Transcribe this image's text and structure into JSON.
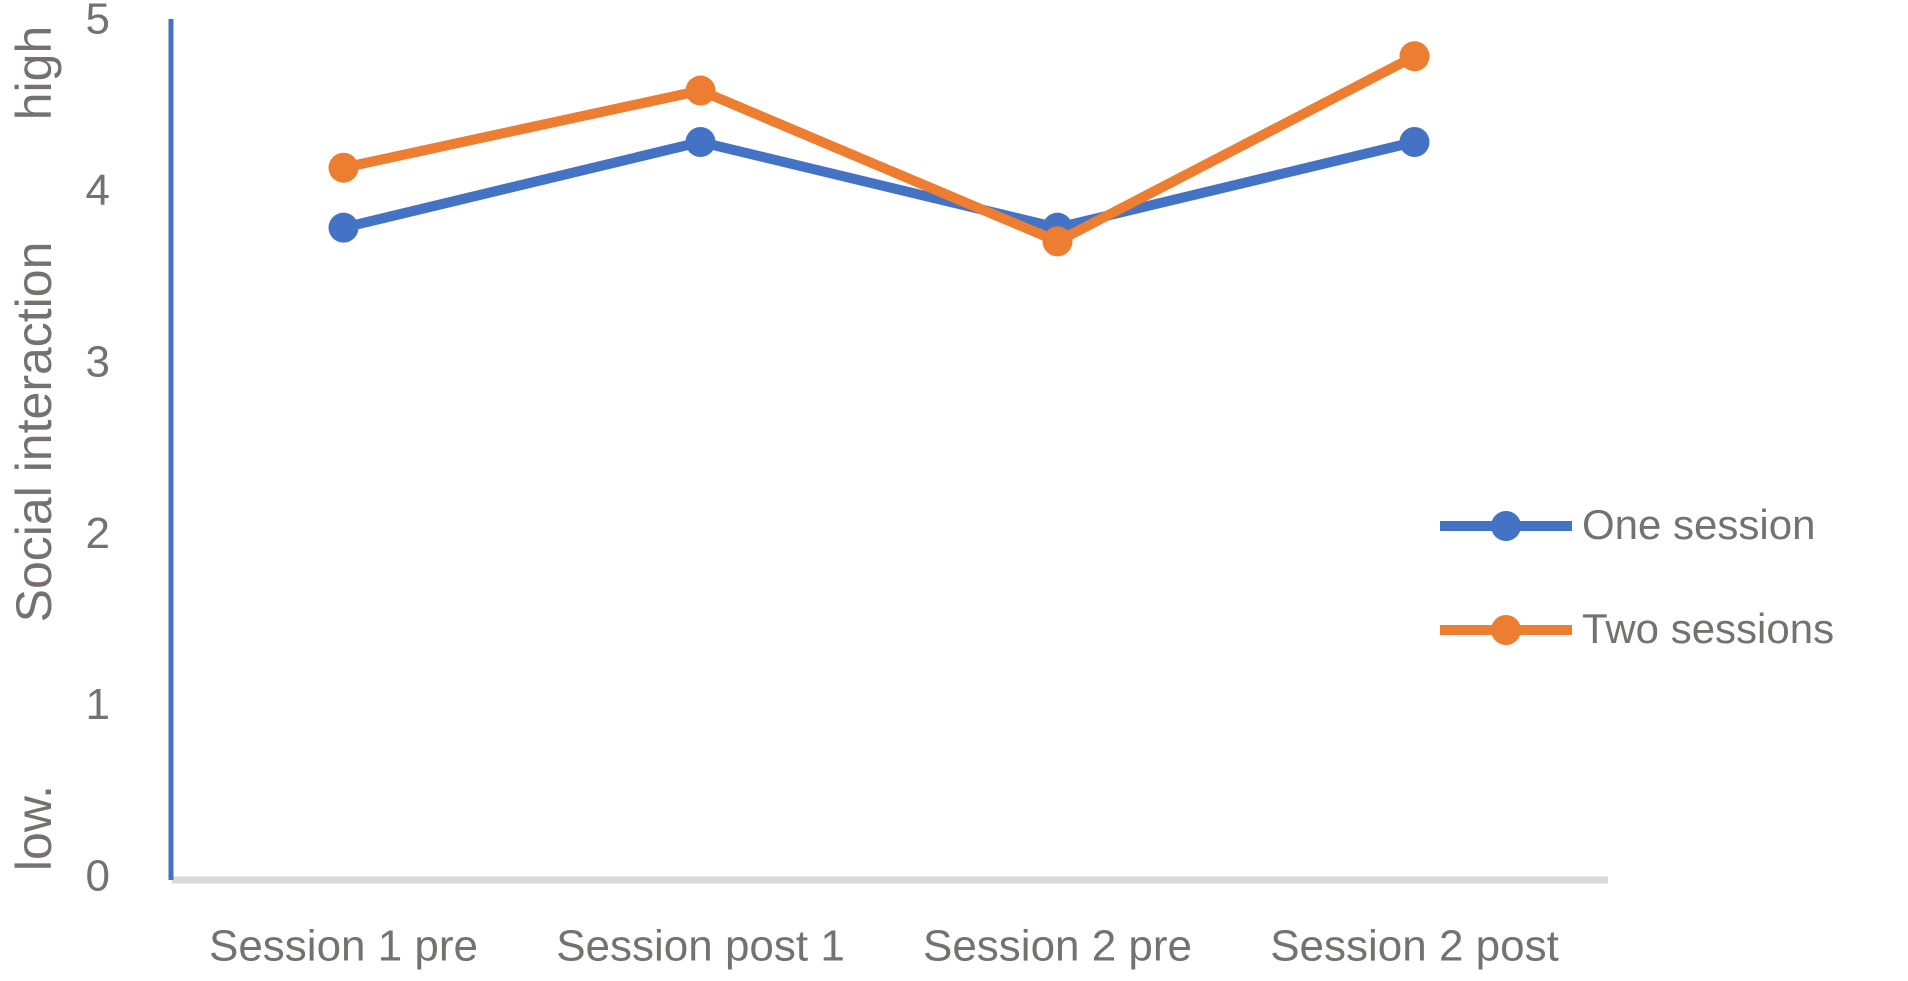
{
  "chart_data": {
    "type": "line",
    "y_label_low": "low.",
    "y_label": "Social interaction",
    "y_label_high": "high",
    "categories": [
      "Session 1 pre",
      "Session post 1",
      "Session 2 pre",
      "Session 2 post"
    ],
    "series": [
      {
        "name": "One session",
        "color": "#4472c4",
        "values": [
          3.8,
          4.3,
          3.8,
          4.3
        ]
      },
      {
        "name": "Two sessions",
        "color": "#ed7d31",
        "values": [
          4.15,
          4.6,
          3.72,
          4.8
        ]
      }
    ],
    "ylim": [
      0,
      5
    ],
    "yticks": [
      0,
      1,
      2,
      3,
      4,
      5
    ],
    "grid": false,
    "legend": "right"
  }
}
